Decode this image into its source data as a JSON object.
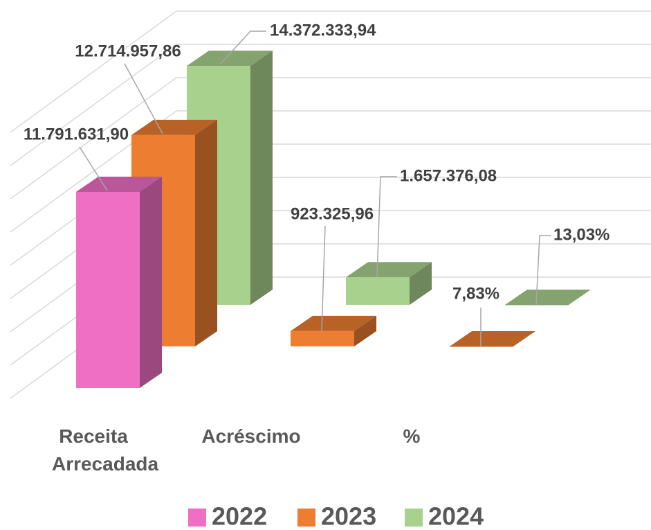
{
  "chart_data": {
    "type": "bar3d",
    "categories": [
      "Receita Arrecadada",
      "Acréscimo",
      "%"
    ],
    "series": [
      {
        "name": "2022",
        "color": "#ee6fc4",
        "values": [
          11791631.9,
          null,
          null
        ],
        "value_labels": [
          "11.791.631,90",
          null,
          null
        ]
      },
      {
        "name": "2023",
        "color": "#ed7d31",
        "values": [
          12714957.86,
          923325.96,
          7.83
        ],
        "value_labels": [
          "12.714.957,86",
          "923.325,96",
          "7,83%"
        ]
      },
      {
        "name": "2024",
        "color": "#a9d18e",
        "values": [
          14372333.94,
          1657376.08,
          13.03
        ],
        "value_labels": [
          "14.372.333,94",
          "1.657.376,08",
          "13,03%"
        ]
      }
    ],
    "ylim": [
      0,
      16000000
    ],
    "yticks": [
      0,
      2000000,
      4000000,
      6000000,
      8000000,
      10000000,
      12000000,
      14000000,
      16000000
    ],
    "grid": true,
    "legend": "bottom"
  }
}
